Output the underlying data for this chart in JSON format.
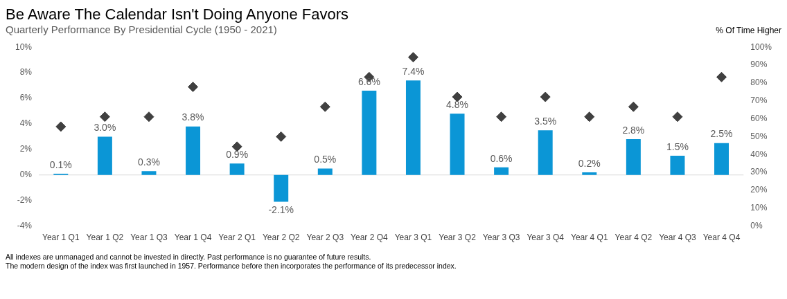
{
  "chart_data": {
    "type": "bar",
    "title": "Be Aware The Calendar Isn't Doing Anyone Favors",
    "subtitle": "Quarterly Performance By Presidential Cycle (1950 - 2021)",
    "y2label": "% Of Time Higher",
    "categories": [
      "Year 1 Q1",
      "Year 1 Q2",
      "Year 1 Q3",
      "Year 1 Q4",
      "Year 2 Q1",
      "Year 2 Q2",
      "Year 2 Q3",
      "Year 2 Q4",
      "Year 3 Q1",
      "Year 3 Q2",
      "Year 3 Q3",
      "Year 3 Q4",
      "Year 4 Q1",
      "Year 4 Q2",
      "Year 4 Q3",
      "Year 4 Q4"
    ],
    "series": [
      {
        "color": "#0b96d6",
        "values": [
          0.1,
          3.0,
          0.3,
          3.8,
          0.9,
          -2.1,
          0.5,
          6.6,
          7.4,
          4.8,
          0.6,
          3.5,
          0.2,
          2.8,
          1.5,
          2.5
        ],
        "value_labels": [
          "0.1%",
          "3.0%",
          "0.3%",
          "3.8%",
          "0.9%",
          "-2.1%",
          "0.5%",
          "6.6%",
          "7.4%",
          "4.8%",
          "0.6%",
          "3.5%",
          "0.2%",
          "2.8%",
          "1.5%",
          "2.5%"
        ]
      },
      {
        "type": "scatter",
        "axis": "y2",
        "color": "#404040",
        "marker": "diamond",
        "values": [
          55.6,
          61.1,
          61.1,
          77.8,
          44.4,
          50,
          66.7,
          83.3,
          94.4,
          72.2,
          61.1,
          72.2,
          61.1,
          66.7,
          61.1,
          83.3
        ]
      }
    ],
    "ylim": [
      -4,
      10
    ],
    "yticks": [
      {
        "value": -4,
        "label": "-4%"
      },
      {
        "value": -2,
        "label": "-2%"
      },
      {
        "value": 0,
        "label": "0%"
      },
      {
        "value": 2,
        "label": "2%"
      },
      {
        "value": 4,
        "label": "4%"
      },
      {
        "value": 6,
        "label": "6%"
      },
      {
        "value": 8,
        "label": "8%"
      },
      {
        "value": 10,
        "label": "10%"
      }
    ],
    "y2lim": [
      0,
      100
    ],
    "y2ticks": [
      {
        "value": 0,
        "label": "0%"
      },
      {
        "value": 10,
        "label": "10%"
      },
      {
        "value": 20,
        "label": "20%"
      },
      {
        "value": 30,
        "label": "30%"
      },
      {
        "value": 40,
        "label": "40%"
      },
      {
        "value": 50,
        "label": "50%"
      },
      {
        "value": 60,
        "label": "60%"
      },
      {
        "value": 70,
        "label": "70%"
      },
      {
        "value": 80,
        "label": "80%"
      },
      {
        "value": 90,
        "label": "90%"
      },
      {
        "value": 100,
        "label": "100%"
      }
    ],
    "grid": false,
    "legend": false,
    "ref_lines": [
      {
        "axis": "y",
        "value": 0,
        "color": "#d9d9d9"
      }
    ],
    "annotations": [
      "All indexes are unmanaged and cannot be invested in directly. Past performance is no guarantee of future results.",
      "The modern design of the index was first launched in 1957. Performance before then incorporates the performance of its predecessor index."
    ]
  }
}
